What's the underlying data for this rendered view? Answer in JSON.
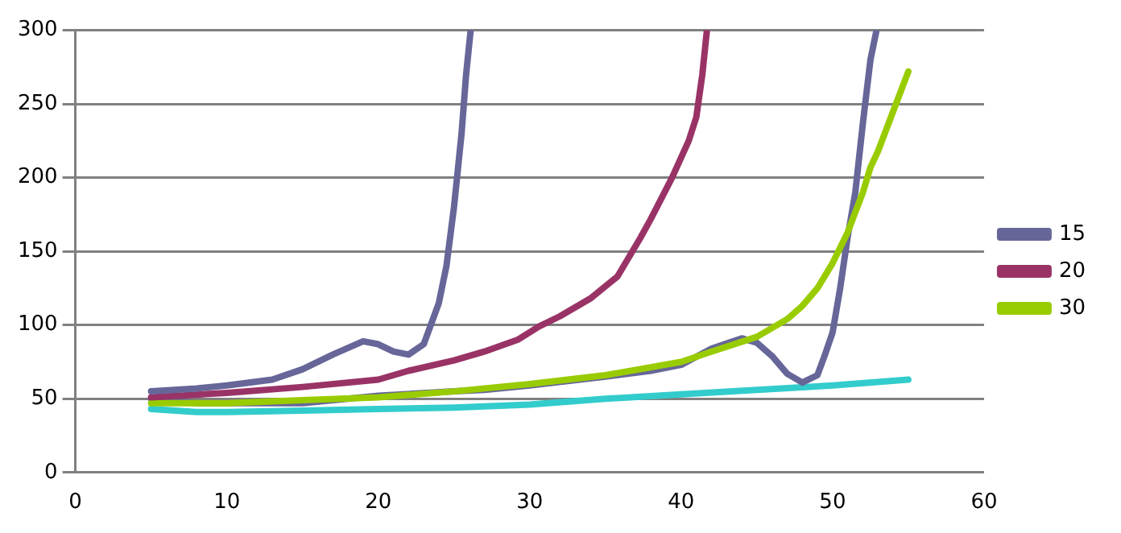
{
  "chart_data": {
    "type": "line",
    "xlim": [
      0,
      60
    ],
    "xticks": [
      0,
      10,
      20,
      30,
      40,
      50,
      60
    ],
    "ylim": [
      0,
      300
    ],
    "yticks": [
      0,
      50,
      100,
      150,
      200,
      250,
      300
    ],
    "grid": "y",
    "legend": "right",
    "marker": "none",
    "line_style": "solid",
    "series": [
      {
        "name": "15",
        "color": "#666699",
        "x": [
          5,
          8,
          10,
          13,
          15,
          17,
          19,
          20,
          21,
          22,
          23,
          24,
          24.5,
          25,
          25.5,
          25.8,
          26.1
        ],
        "values": [
          55,
          57,
          59,
          63,
          70,
          80,
          89,
          87,
          82,
          80,
          87,
          115,
          140,
          180,
          230,
          270,
          300
        ]
      },
      {
        "name": "20",
        "color": "#993366",
        "x": [
          5,
          10,
          15,
          20,
          22,
          25,
          27,
          29.2,
          30.6,
          32,
          34,
          35.8,
          37.3,
          38,
          39.4,
          40.5,
          41,
          41.4,
          41.7
        ],
        "values": [
          51,
          54,
          58,
          63,
          69,
          76,
          82,
          90,
          99,
          106,
          118,
          133,
          159,
          172,
          200,
          225,
          241,
          270,
          300
        ]
      },
      {
        "name": "30",
        "color": "#99cc00",
        "x": [
          5,
          10,
          15,
          20,
          25,
          30,
          35,
          40,
          42,
          45,
          47,
          48,
          49,
          50,
          51,
          52,
          52.5,
          53,
          54,
          55
        ],
        "values": [
          47,
          47,
          49,
          51,
          55,
          60,
          66,
          75,
          82,
          92,
          104,
          113,
          125,
          142,
          163,
          190,
          207,
          218,
          245,
          272
        ]
      },
      {
        "color": "#666699",
        "x": [
          5,
          8,
          10,
          15,
          20,
          25,
          27,
          30,
          35,
          38,
          40,
          42,
          44,
          45,
          46,
          47,
          48,
          49,
          49.5,
          50,
          50.5,
          51,
          51.5,
          52,
          52.5,
          52.9
        ],
        "values": [
          50,
          47,
          47,
          47,
          52,
          55,
          56,
          59,
          65,
          69,
          73,
          84,
          91,
          88,
          79,
          67,
          61,
          66,
          80,
          95,
          125,
          160,
          190,
          237,
          280,
          300
        ]
      },
      {
        "color": "#33cccc",
        "x": [
          5,
          8,
          10,
          15,
          20,
          25,
          30,
          35,
          40,
          45,
          50,
          55
        ],
        "values": [
          43,
          41,
          41,
          42,
          43,
          44,
          46,
          50,
          53,
          56,
          59,
          63
        ]
      }
    ]
  }
}
